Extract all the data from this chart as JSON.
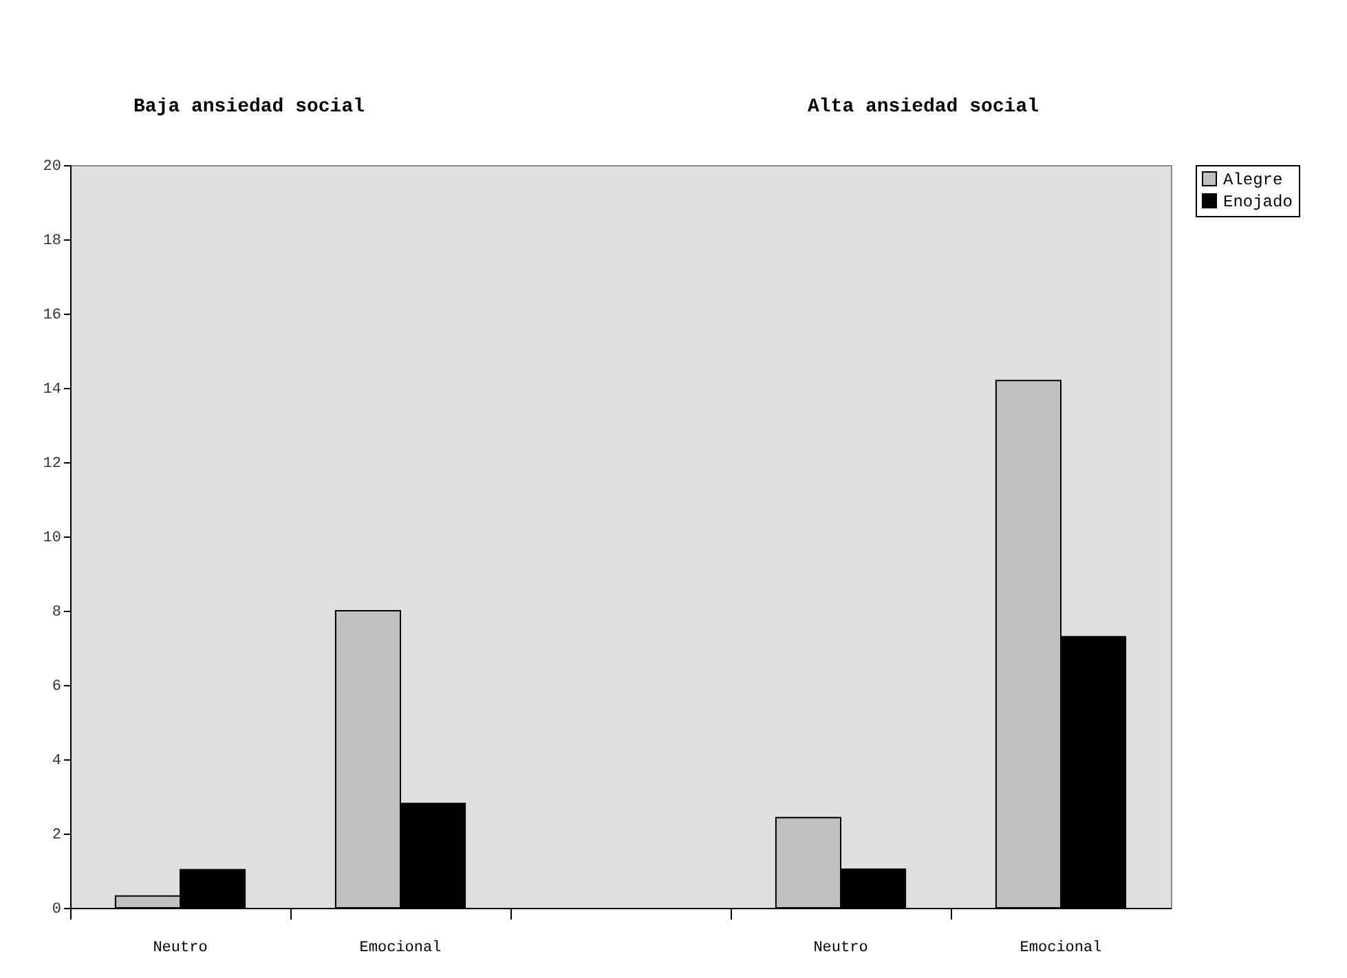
{
  "chart_data": {
    "type": "bar",
    "categories": [
      "Neutro",
      "Emocional",
      null,
      "Neutro",
      "Emocional"
    ],
    "series": [
      {
        "name": "Alegre",
        "color": "#c0c0c0",
        "values": [
          0.32,
          8.0,
          null,
          2.43,
          14.2
        ]
      },
      {
        "name": "Enojado",
        "color": "#000000",
        "values": [
          1.03,
          2.81,
          null,
          1.04,
          7.3
        ]
      }
    ],
    "ylim": [
      0,
      20
    ],
    "yticks": [
      0,
      2,
      4,
      6,
      8,
      10,
      12,
      14,
      16,
      18,
      20
    ],
    "annotations": [
      "Baja ansiedad social",
      "Alta ansiedad social"
    ],
    "grid": false,
    "legend": "right"
  }
}
